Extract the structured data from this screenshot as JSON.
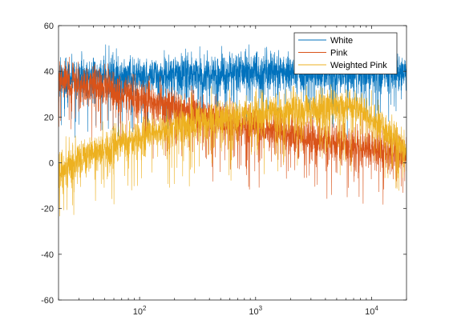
{
  "chart_data": {
    "type": "line",
    "xscale": "log",
    "xlim": [
      20,
      20000
    ],
    "ylim": [
      -60,
      60
    ],
    "grid": false,
    "legend_position": "top-right",
    "title": "",
    "xlabel": "",
    "ylabel": "",
    "x_ticks": [
      {
        "value": 100,
        "base": "10",
        "exp": "2"
      },
      {
        "value": 1000,
        "base": "10",
        "exp": "3"
      },
      {
        "value": 10000,
        "base": "10",
        "exp": "4"
      }
    ],
    "y_ticks": [
      {
        "value": 60,
        "label": "60"
      },
      {
        "value": 40,
        "label": "40"
      },
      {
        "value": 20,
        "label": "20"
      },
      {
        "value": 0,
        "label": "0"
      },
      {
        "value": -20,
        "label": "-20"
      },
      {
        "value": -40,
        "label": "-40"
      },
      {
        "value": -60,
        "label": "-60"
      }
    ],
    "series": [
      {
        "name": "White",
        "color": "#0072BD",
        "spec": "white",
        "anchors": [
          [
            20,
            36
          ],
          [
            100,
            38
          ],
          [
            1000,
            40
          ],
          [
            10000,
            40
          ],
          [
            20000,
            40
          ]
        ],
        "spread": 7
      },
      {
        "name": "Pink",
        "color": "#D95319",
        "spec": "pink",
        "anchors": [
          [
            20,
            36
          ],
          [
            40,
            34
          ],
          [
            100,
            28
          ],
          [
            300,
            22
          ],
          [
            1000,
            15
          ],
          [
            3000,
            11
          ],
          [
            10000,
            6
          ],
          [
            20000,
            4
          ]
        ],
        "spread": 7
      },
      {
        "name": "Weighted Pink",
        "color": "#EDB120",
        "spec": "weighted",
        "anchors": [
          [
            20,
            -4
          ],
          [
            30,
            2
          ],
          [
            50,
            6
          ],
          [
            100,
            12
          ],
          [
            300,
            18
          ],
          [
            1000,
            21
          ],
          [
            3000,
            24
          ],
          [
            6000,
            25
          ],
          [
            8000,
            24
          ],
          [
            10000,
            20
          ],
          [
            15000,
            12
          ],
          [
            20000,
            6
          ]
        ],
        "spread": 7
      }
    ]
  }
}
